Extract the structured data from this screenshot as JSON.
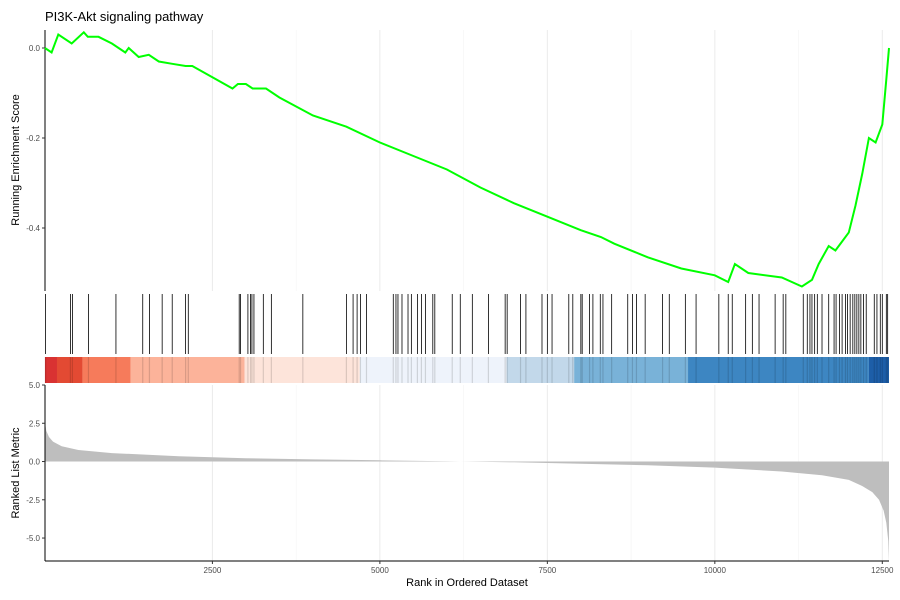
{
  "chart_data": [
    {
      "type": "line",
      "panel": "running-enrichment-score",
      "title": "PI3K-Akt signaling pathway",
      "ylabel": "Running Enrichment Score",
      "xlim": [
        1,
        12600
      ],
      "ylim": [
        -0.54,
        0.04
      ],
      "yticks": [
        "0.0",
        "-0.2",
        "-0.4"
      ],
      "grid": true,
      "line_color": "#00ff00",
      "x": [
        0,
        100,
        200,
        400,
        580,
        640,
        800,
        1000,
        1200,
        1250,
        1400,
        1550,
        1700,
        1900,
        2100,
        2200,
        2500,
        2800,
        2880,
        3000,
        3100,
        3300,
        3500,
        4000,
        4500,
        5000,
        5500,
        6000,
        6500,
        7000,
        7500,
        8000,
        8300,
        8500,
        9000,
        9500,
        10000,
        10200,
        10300,
        10500,
        11000,
        11300,
        11450,
        11550,
        11700,
        11800,
        11900,
        12000,
        12100,
        12200,
        12300,
        12400,
        12500,
        12560,
        12600
      ],
      "y": [
        0.0,
        -0.01,
        0.03,
        0.01,
        0.035,
        0.025,
        0.025,
        0.01,
        -0.01,
        0.0,
        -0.02,
        -0.015,
        -0.03,
        -0.035,
        -0.04,
        -0.04,
        -0.065,
        -0.09,
        -0.08,
        -0.08,
        -0.09,
        -0.09,
        -0.11,
        -0.15,
        -0.175,
        -0.21,
        -0.24,
        -0.27,
        -0.31,
        -0.345,
        -0.375,
        -0.405,
        -0.42,
        -0.435,
        -0.465,
        -0.49,
        -0.505,
        -0.52,
        -0.48,
        -0.5,
        -0.51,
        -0.53,
        -0.515,
        -0.48,
        -0.44,
        -0.45,
        -0.43,
        -0.41,
        -0.35,
        -0.28,
        -0.2,
        -0.21,
        -0.17,
        -0.07,
        0.0
      ]
    },
    {
      "type": "scatter",
      "panel": "gene-hit-positions",
      "x": [
        10,
        380,
        410,
        650,
        1060,
        1460,
        1560,
        1750,
        1900,
        2100,
        2140,
        2900,
        2920,
        3030,
        3070,
        3090,
        3120,
        3260,
        3380,
        3850,
        4500,
        4600,
        4660,
        4710,
        4800,
        5200,
        5240,
        5270,
        5330,
        5420,
        5470,
        5560,
        5620,
        5680,
        5790,
        5820,
        6080,
        6200,
        6380,
        6620,
        6870,
        6900,
        7100,
        7180,
        7420,
        7500,
        7570,
        7820,
        7880,
        8000,
        8020,
        8130,
        8180,
        8290,
        8330,
        8460,
        8700,
        8770,
        8830,
        8960,
        9220,
        9320,
        9560,
        9720,
        10060,
        10200,
        10260,
        10460,
        10560,
        10660,
        10900,
        11020,
        11060,
        11320,
        11380,
        11420,
        11450,
        11490,
        11530,
        11600,
        11700,
        11780,
        11810,
        11860,
        11900,
        11950,
        11980,
        12020,
        12060,
        12090,
        12120,
        12150,
        12180,
        12220,
        12260,
        12380,
        12420,
        12470,
        12500,
        12560,
        12580
      ]
    },
    {
      "type": "heatmap",
      "panel": "rank-color-band",
      "bands": [
        {
          "from": 0,
          "to": 180,
          "color": "#d93232"
        },
        {
          "from": 180,
          "to": 560,
          "color": "#e34a33"
        },
        {
          "from": 560,
          "to": 1280,
          "color": "#f67b5b"
        },
        {
          "from": 1280,
          "to": 2980,
          "color": "#fcb39a"
        },
        {
          "from": 2980,
          "to": 4700,
          "color": "#fde4da"
        },
        {
          "from": 4700,
          "to": 6900,
          "color": "#eef3fb"
        },
        {
          "from": 6900,
          "to": 7900,
          "color": "#c2d8ea"
        },
        {
          "from": 7900,
          "to": 9600,
          "color": "#79b2d8"
        },
        {
          "from": 9600,
          "to": 12300,
          "color": "#3d86c2"
        },
        {
          "from": 12300,
          "to": 12600,
          "color": "#1d5ea8"
        }
      ]
    },
    {
      "type": "area",
      "panel": "ranked-list-metric",
      "ylabel": "Ranked List Metric",
      "xlabel": "Rank in Ordered Dataset",
      "xlim": [
        1,
        12600
      ],
      "ylim": [
        -6.5,
        5.0
      ],
      "yticks": [
        "5.0",
        "2.5",
        "0.0",
        "-2.5",
        "-5.0"
      ],
      "xticks": [
        "2500",
        "5000",
        "7500",
        "10000",
        "12500"
      ],
      "fill_color": "#bebebe",
      "x": [
        0,
        20,
        60,
        120,
        250,
        500,
        1000,
        2000,
        3000,
        4000,
        5000,
        6000,
        6200,
        7000,
        8000,
        9000,
        10000,
        11000,
        11600,
        12000,
        12200,
        12350,
        12450,
        12520,
        12560,
        12590,
        12600
      ],
      "y": [
        2.6,
        2.0,
        1.6,
        1.3,
        1.0,
        0.75,
        0.55,
        0.35,
        0.22,
        0.14,
        0.08,
        0.02,
        0.0,
        -0.05,
        -0.15,
        -0.25,
        -0.4,
        -0.65,
        -0.9,
        -1.2,
        -1.6,
        -2.0,
        -2.5,
        -3.2,
        -4.0,
        -5.2,
        -6.6
      ]
    }
  ]
}
